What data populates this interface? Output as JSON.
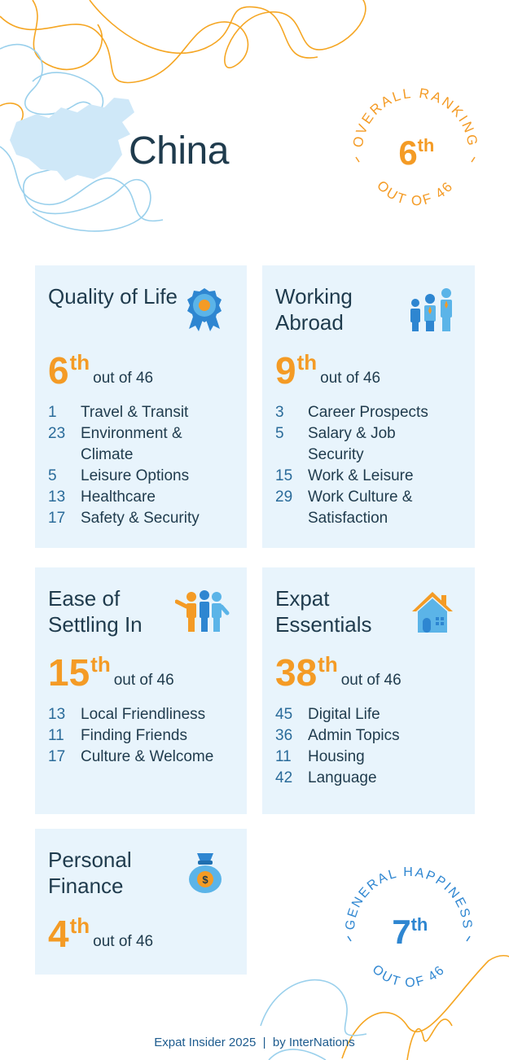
{
  "country": "China",
  "overall": {
    "ring_top": "OVERALL RANKING",
    "ring_bottom": "OUT OF 46",
    "rank": "6",
    "suffix": "th"
  },
  "happiness": {
    "ring_top": "GENERAL HAPPINESS",
    "ring_bottom": "OUT OF 46",
    "rank": "7",
    "suffix": "th"
  },
  "cards": [
    {
      "title": "Quality of Life",
      "rank": "6",
      "suffix": "th",
      "out_of": "out of 46",
      "items": [
        {
          "n": "1",
          "label": "Travel & Transit"
        },
        {
          "n": "23",
          "label": "Environment & Climate"
        },
        {
          "n": "5",
          "label": "Leisure Options"
        },
        {
          "n": "13",
          "label": "Healthcare"
        },
        {
          "n": "17",
          "label": "Safety & Security"
        }
      ]
    },
    {
      "title": "Working Abroad",
      "rank": "9",
      "suffix": "th",
      "out_of": "out of 46",
      "items": [
        {
          "n": "3",
          "label": "Career Prospects"
        },
        {
          "n": "5",
          "label": "Salary & Job Security"
        },
        {
          "n": "15",
          "label": "Work & Leisure"
        },
        {
          "n": "29",
          "label": "Work Culture & Satisfaction"
        }
      ]
    },
    {
      "title": "Ease of Settling In",
      "rank": "15",
      "suffix": "th",
      "out_of": "out of 46",
      "items": [
        {
          "n": "13",
          "label": "Local Friendliness"
        },
        {
          "n": "11",
          "label": "Finding Friends"
        },
        {
          "n": "17",
          "label": "Culture & Welcome"
        }
      ]
    },
    {
      "title": "Expat Essentials",
      "rank": "38",
      "suffix": "th",
      "out_of": "out of 46",
      "items": [
        {
          "n": "45",
          "label": "Digital Life"
        },
        {
          "n": "36",
          "label": "Admin Topics"
        },
        {
          "n": "11",
          "label": "Housing"
        },
        {
          "n": "42",
          "label": "Language"
        }
      ]
    },
    {
      "title": "Personal Finance",
      "rank": "4",
      "suffix": "th",
      "out_of": "out of 46",
      "items": []
    }
  ],
  "footer": "Expat Insider 2025  |  by InterNations",
  "colors": {
    "orange": "#f49b25",
    "blue": "#2e86d1",
    "card": "#e8f4fc",
    "navy": "#1f3b4d"
  },
  "icons": [
    "rosette-icon",
    "business-people-icon",
    "group-pointing-icon",
    "house-icon",
    "money-bag-icon"
  ]
}
